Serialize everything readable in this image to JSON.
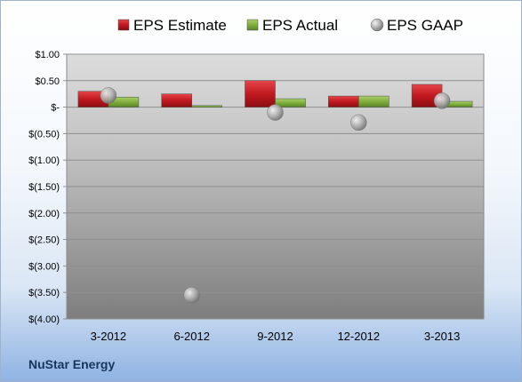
{
  "company": "NuStar Energy",
  "chart_data": {
    "type": "bar",
    "categories": [
      "3-2012",
      "6-2012",
      "9-2012",
      "12-2012",
      "3-2013"
    ],
    "series": [
      {
        "name": "EPS Estimate",
        "kind": "bar",
        "color": "#c0191f",
        "values": [
          0.3,
          0.25,
          0.5,
          0.21,
          0.43
        ]
      },
      {
        "name": "EPS Actual",
        "kind": "bar",
        "color": "#7fae3c",
        "values": [
          0.19,
          0.03,
          0.16,
          0.21,
          0.11
        ]
      },
      {
        "name": "EPS GAAP",
        "kind": "point",
        "color": "#a9a9a9",
        "values": [
          0.22,
          -3.55,
          -0.1,
          -0.29,
          0.12
        ]
      }
    ],
    "ylim": [
      -4.0,
      1.0
    ],
    "yticks": [
      1.0,
      0.5,
      0,
      -0.5,
      -1.0,
      -1.5,
      -2.0,
      -2.5,
      -3.0,
      -3.5,
      -4.0
    ],
    "ytick_labels": [
      "$1.00",
      "$0.50",
      "$-",
      "$(0.50)",
      "$(1.00)",
      "$(1.50)",
      "$(2.00)",
      "$(2.50)",
      "$(3.00)",
      "$(3.50)",
      "$(4.00)"
    ],
    "grid": true,
    "legend_position": "top"
  }
}
